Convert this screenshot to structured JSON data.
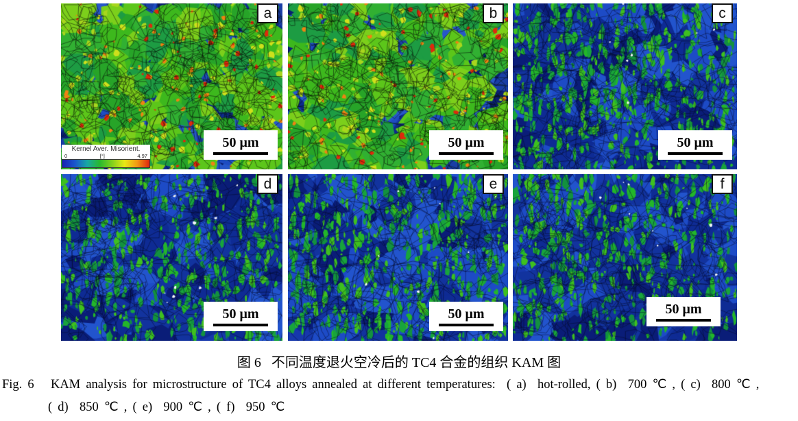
{
  "figure": {
    "caption_zh": "图 6   不同温度退火空冷后的 TC4 合金的组织 KAM 图",
    "caption_en_line1": "Fig. 6   KAM analysis for microstructure of TC4 alloys annealed at different temperatures:  ( a)  hot-rolled, ( b)  700 ℃ , ( c)  800 ℃ ,",
    "caption_en_line2": "( d)  850 ℃ , ( e)  900 ℃ , ( f)  950 ℃",
    "legend": {
      "title": "Kernel Aver. Misorient.",
      "min": "0",
      "unit": "[°]",
      "max": "4.97",
      "colormap": [
        "#1822b4",
        "#1a55cc",
        "#18a8a4",
        "#28b92e",
        "#83d01c",
        "#e8e816",
        "#f09a14",
        "#e02610"
      ]
    },
    "panels": [
      {
        "label": "a",
        "condition": "hot-rolled",
        "texture": "hot",
        "banding": false,
        "seed": 3,
        "scale_text": "50 μm",
        "has_legend": true
      },
      {
        "label": "b",
        "condition": "700 ℃",
        "texture": "hot",
        "banding": false,
        "seed": 8,
        "scale_text": "50 μm",
        "has_legend": false
      },
      {
        "label": "c",
        "condition": "800 ℃",
        "texture": "cold",
        "banding": true,
        "seed": 5,
        "scale_text": "50 μm",
        "has_legend": false
      },
      {
        "label": "d",
        "condition": "850 ℃",
        "texture": "cold",
        "banding": false,
        "seed": 11,
        "scale_text": "50 μm",
        "has_legend": false
      },
      {
        "label": "e",
        "condition": "900 ℃",
        "texture": "cold",
        "banding": true,
        "seed": 14,
        "scale_text": "50 μm",
        "has_legend": false
      },
      {
        "label": "f",
        "condition": "950 ℃",
        "texture": "cold",
        "banding": false,
        "seed": 21,
        "scale_text": "50 μm",
        "has_legend": false
      }
    ]
  }
}
